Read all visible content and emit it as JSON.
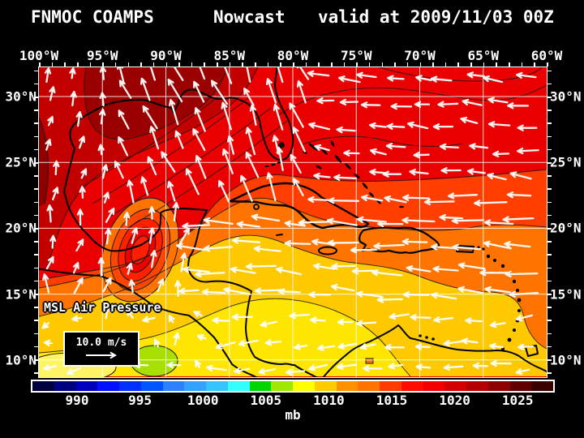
{
  "title": {
    "product": "FNMOC COAMPS",
    "run": "Nowcast",
    "valid": "valid at 2009/11/03 00Z"
  },
  "map": {
    "lon_labels": [
      "100°W",
      "95°W",
      "90°W",
      "85°W",
      "80°W",
      "75°W",
      "70°W",
      "65°W",
      "60°W"
    ],
    "lat_labels": [
      "30°N",
      "25°N",
      "20°N",
      "15°N",
      "10°N"
    ],
    "field_label": "MSL Air Pressure",
    "wind_legend_speed": "10.0 m/s"
  },
  "colorbar": {
    "unit": "mb",
    "tick_labels": [
      "990",
      "995",
      "1000",
      "1005",
      "1010",
      "1015",
      "1020",
      "1025"
    ],
    "colors": [
      "#000040",
      "#000080",
      "#0000BF",
      "#0010FF",
      "#0030FF",
      "#0055FF",
      "#2E80FF",
      "#33A1FF",
      "#33C4FF",
      "#2FFFFF",
      "#00D500",
      "#9FE800",
      "#FFFF00",
      "#FFCC00",
      "#FF9100",
      "#FF7300",
      "#FF3C00",
      "#FF0C00",
      "#F20000",
      "#D40000",
      "#B40000",
      "#8C0000",
      "#600000",
      "#3A0000"
    ]
  },
  "accent_colors": {
    "background": "#000000",
    "text": "#FFFFFF",
    "gridlines": "#FFFFFF",
    "coastlines": "#000000",
    "wind_arrows": "#FFFFFF"
  }
}
